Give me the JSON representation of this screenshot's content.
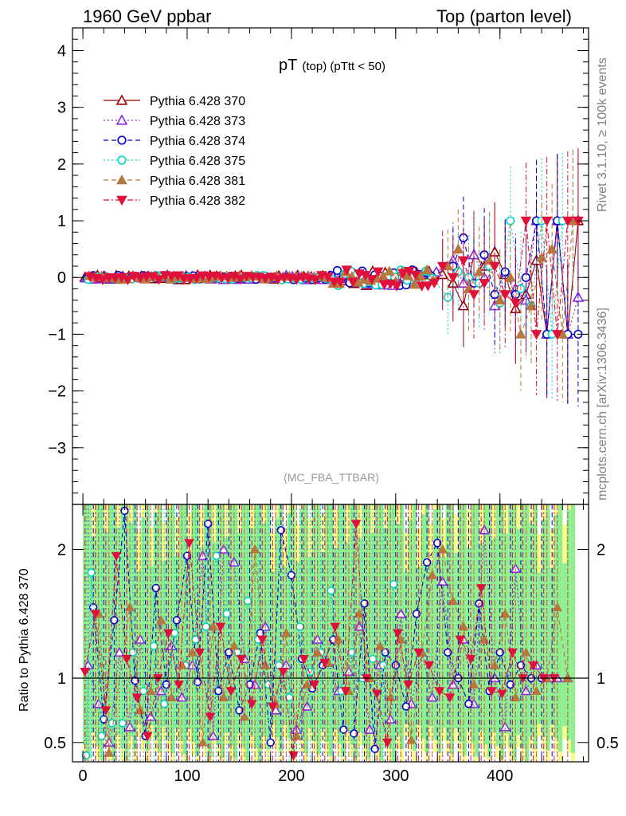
{
  "header": {
    "left": "1960 GeV ppbar",
    "right": "Top (parton level)"
  },
  "side_labels": {
    "rivet": "Rivet 3.1.10, ≥ 100k events",
    "mcplots": "mcplots.cern.ch [arXiv:1306.3436]"
  },
  "chart_data": [
    {
      "type": "scatter",
      "title": "pT (top) (pTtt < 50)",
      "title_main": "pT",
      "title_sub": "(top) (pTtt < 50)",
      "watermark": "(MC_FBA_TTBAR)",
      "xlim": [
        -10,
        485
      ],
      "ylim": [
        -4,
        4.4
      ],
      "yticks": [
        4,
        3,
        2,
        1,
        0,
        -1,
        -2,
        -3
      ],
      "ytick_labels": [
        "4",
        "3",
        "2",
        "1",
        "0",
        "−1",
        "−2",
        "−3"
      ],
      "xticks": [
        0,
        100,
        200,
        300,
        400
      ],
      "xtick_labels": [
        "0",
        "100",
        "200",
        "300",
        "400"
      ],
      "legend_position": "top-left",
      "series": [
        {
          "name": "Pythia 6.428 370",
          "color": "#990000",
          "marker": "triangle-open",
          "line": "solid",
          "x": [
            345,
            355,
            365,
            375,
            385,
            395,
            405,
            415,
            425,
            435,
            445,
            455,
            465,
            475
          ],
          "y": [
            0.05,
            -0.1,
            -0.5,
            0.4,
            0.2,
            0.45,
            0.05,
            -0.55,
            -0.3,
            0.3,
            -1.0,
            1.0,
            -1.0,
            1.0
          ]
        },
        {
          "name": "Pythia 6.428 373",
          "color": "#8a2be2",
          "marker": "triangle-open",
          "line": "dotted",
          "x": [
            355,
            365,
            375,
            385,
            395,
            405,
            415,
            425,
            435,
            445,
            455,
            465,
            475
          ],
          "y": [
            0.3,
            -0.1,
            0.4,
            0.0,
            -0.5,
            0.1,
            -0.2,
            -0.4,
            1.0,
            -1.0,
            1.0,
            -1.0,
            -0.35
          ]
        },
        {
          "name": "Pythia 6.428 374",
          "color": "#0000cc",
          "marker": "circle-open",
          "line": "dashed",
          "x": [
            355,
            365,
            375,
            385,
            395,
            405,
            415,
            425,
            435,
            445,
            455,
            465,
            475
          ],
          "y": [
            0.2,
            0.7,
            -0.1,
            0.4,
            -0.3,
            0.1,
            -0.3,
            0.0,
            1.0,
            -1.0,
            1.0,
            -1.0,
            -1.0
          ]
        },
        {
          "name": "Pythia 6.428 375",
          "color": "#00d4c4",
          "marker": "circle-open",
          "line": "dotted",
          "x": [
            350,
            360,
            370,
            380,
            390,
            400,
            410,
            420,
            430,
            440,
            450,
            460,
            470
          ],
          "y": [
            -0.35,
            0.1,
            0.0,
            -0.1,
            0.2,
            -0.45,
            1.0,
            -0.2,
            -0.5,
            1.0,
            -1.0,
            1.0,
            1.0
          ]
        },
        {
          "name": "Pythia 6.428 381",
          "color": "#b5793f",
          "marker": "triangle-filled",
          "line": "dashed",
          "x": [
            350,
            360,
            370,
            380,
            390,
            400,
            410,
            420,
            430,
            440,
            450,
            460,
            470
          ],
          "y": [
            0.2,
            0.5,
            -0.2,
            0.1,
            0.3,
            -0.4,
            0.0,
            -1.0,
            -0.5,
            0.35,
            0.5,
            -1.0,
            1.0
          ]
        },
        {
          "name": "Pythia 6.428 382",
          "color": "#e0103c",
          "marker": "triangle-down-filled",
          "line": "dashdot",
          "x": [
            345,
            355,
            365,
            375,
            385,
            395,
            405,
            415,
            425,
            435,
            445,
            455,
            465,
            475
          ],
          "y": [
            0.2,
            0.0,
            0.3,
            -0.3,
            -0.1,
            0.2,
            -0.3,
            -0.45,
            1.0,
            -1.0,
            1.0,
            -1.0,
            1.0,
            1.0
          ]
        }
      ]
    },
    {
      "type": "scatter",
      "ylabel": "Ratio to Pythia 6.428 370",
      "xlim": [
        -10,
        485
      ],
      "ylim": [
        0.35,
        2.35
      ],
      "yticks": [
        2,
        1,
        0.5
      ],
      "ytick_labels": [
        "2",
        "1",
        "0.5"
      ],
      "xticks": [
        0,
        100,
        200,
        300,
        400
      ],
      "xtick_labels": [
        "0",
        "100",
        "200",
        "300",
        "400"
      ],
      "reference_line": 1,
      "band_colors": {
        "inner": "#8fef8f",
        "outer": "#fffa8a"
      },
      "series": [
        {
          "name": "Pythia 6.428 373",
          "color": "#8a2be2",
          "marker": "triangle-open",
          "line": "dotted",
          "x": [
            5,
            15,
            25,
            35,
            45,
            55,
            65,
            75,
            85,
            95,
            105,
            115,
            125,
            135,
            145,
            155,
            165,
            175,
            185,
            195,
            205,
            215,
            225,
            235,
            245,
            255,
            265,
            275,
            285,
            295,
            305,
            315,
            325,
            335,
            345,
            355,
            365,
            375,
            385,
            395,
            405,
            415,
            425,
            435,
            445,
            455,
            465
          ],
          "y": [
            1.1,
            0.8,
            0.5,
            1.2,
            0.62,
            1.3,
            0.7,
            0.9,
            1.25,
            0.85,
            1.1,
            1.95,
            0.55,
            2.0,
            1.9,
            1.15,
            0.95,
            1.4,
            0.75,
            1.1,
            0.6,
            0.78,
            1.3,
            1.12,
            0.9,
            1.05,
            1.4,
            0.6,
            1.1,
            0.68,
            1.5,
            0.8,
            1.2,
            0.85,
            1.75,
            0.95,
            1.3,
            0.8,
            2.15,
            1.0,
            0.62,
            1.85,
            0.9,
            1.1,
            1.0,
            1.0,
            1.0
          ]
        },
        {
          "name": "Pythia 6.428 374",
          "color": "#0000cc",
          "marker": "circle-open",
          "line": "dashed",
          "x": [
            10,
            20,
            30,
            40,
            50,
            60,
            70,
            80,
            90,
            100,
            110,
            120,
            130,
            140,
            150,
            160,
            170,
            180,
            190,
            200,
            210,
            220,
            230,
            240,
            250,
            260,
            270,
            280,
            290,
            300,
            310,
            320,
            330,
            340,
            350,
            360,
            370,
            380,
            390,
            400,
            410,
            420,
            430,
            440,
            450
          ],
          "y": [
            1.55,
            0.68,
            1.45,
            2.3,
            0.98,
            0.55,
            1.7,
            0.95,
            1.45,
            1.95,
            0.97,
            2.2,
            0.9,
            1.2,
            0.75,
            0.95,
            1.35,
            0.5,
            2.15,
            1.8,
            1.15,
            0.92,
            1.1,
            1.3,
            0.6,
            0.57,
            1.58,
            0.45,
            1.2,
            1.1,
            0.78,
            1.5,
            1.9,
            2.05,
            1.2,
            1.0,
            0.8,
            1.58,
            0.9,
            1.2,
            0.95,
            1.1,
            1.0,
            1.0,
            1.0
          ]
        },
        {
          "name": "Pythia 6.428 375",
          "color": "#00d4c4",
          "marker": "circle-open",
          "line": "dotted",
          "x": [
            3,
            8,
            18,
            28,
            38,
            48,
            58,
            68,
            78,
            88,
            98,
            108,
            118,
            128,
            138,
            148,
            158,
            168,
            178,
            188,
            198,
            208,
            218,
            228,
            238,
            248,
            258,
            268,
            278,
            288,
            298
          ],
          "y": [
            0.4,
            1.82,
            0.55,
            0.65,
            0.65,
            1.2,
            0.9,
            1.25,
            0.8,
            1.35,
            1.1,
            1.3,
            1.4,
            1.95,
            1.5,
            1.2,
            1.6,
            1.3,
            0.95,
            1.1,
            0.85,
            1.4,
            1.05,
            1.2,
            1.68,
            0.9,
            1.2,
            1.0,
            1.15,
            1.1,
            1.73
          ]
        },
        {
          "name": "Pythia 6.428 381",
          "color": "#b5793f",
          "marker": "triangle-filled",
          "line": "dashed",
          "x": [
            15,
            25,
            45,
            55,
            65,
            75,
            85,
            95,
            105,
            115,
            125,
            135,
            145,
            155,
            165,
            175,
            185,
            195,
            205,
            215,
            225,
            235,
            245,
            255,
            265,
            275,
            285,
            295,
            305,
            315,
            325,
            335,
            345,
            355,
            365,
            375,
            385,
            395,
            405,
            415,
            425,
            435,
            445,
            455,
            465
          ],
          "y": [
            1.5,
            0.42,
            1.55,
            0.75,
            0.9,
            1.45,
            0.85,
            1.1,
            1.2,
            0.5,
            1.4,
            0.85,
            1.25,
            0.7,
            2.0,
            1.1,
            0.8,
            1.35,
            0.55,
            0.95,
            1.2,
            1.12,
            1.3,
            0.9,
            1.5,
            1.0,
            1.25,
            0.85,
            1.3,
            0.52,
            1.2,
            1.8,
            2.0,
            1.6,
            1.4,
            0.95,
            1.3,
            1.1,
            1.5,
            0.85,
            1.2,
            0.9,
            1.0,
            1.55,
            1.0
          ]
        },
        {
          "name": "Pythia 6.428 382",
          "color": "#e0103c",
          "marker": "triangle-down-filled",
          "line": "dashdot",
          "x": [
            2,
            12,
            22,
            32,
            42,
            52,
            62,
            72,
            82,
            92,
            102,
            112,
            122,
            132,
            142,
            152,
            162,
            172,
            182,
            192,
            202,
            212,
            222,
            232,
            242,
            252,
            262,
            272,
            282,
            292,
            302,
            312,
            322,
            332,
            342,
            352,
            362,
            372,
            382,
            392,
            402,
            412,
            422,
            432,
            442,
            452
          ],
          "y": [
            1.05,
            1.5,
            0.75,
            1.95,
            1.15,
            0.85,
            0.55,
            1.0,
            1.35,
            0.95,
            2.05,
            1.2,
            0.7,
            1.4,
            0.9,
            1.15,
            0.8,
            1.3,
            0.78,
            1.05,
            0.4,
            1.15,
            0.95,
            1.12,
            1.4,
            0.9,
            2.2,
            1.0,
            0.88,
            0.5,
            1.35,
            0.95,
            1.2,
            1.1,
            0.9,
            0.85,
            1.3,
            1.15,
            1.7,
            0.9,
            0.88,
            1.2,
            1.0,
            1.1,
            1.0,
            1.0
          ]
        }
      ]
    }
  ]
}
